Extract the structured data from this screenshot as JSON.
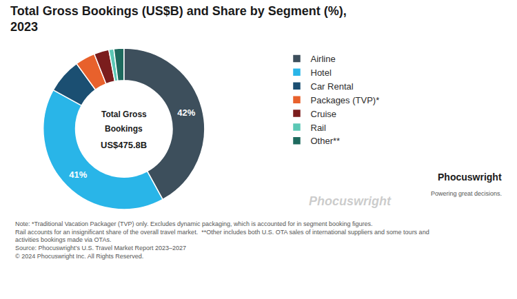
{
  "chart_data": {
    "type": "donut",
    "title": "Total Gross Bookings (US$B) and Share by Segment (%),\n2023",
    "categories": [
      "Airline",
      "Hotel",
      "Car Rental",
      "Packages (TVP)*",
      "Cruise",
      "Rail",
      "Other**"
    ],
    "values": [
      42,
      41,
      7,
      4,
      3,
      1,
      2
    ],
    "value_labels": [
      "42%",
      "41%",
      null,
      null,
      null,
      null,
      null
    ],
    "colors": [
      "#3d4f5c",
      "#29b5e8",
      "#1b4f72",
      "#e8612c",
      "#7b1d1d",
      "#5bc8b5",
      "#1e6a5e"
    ],
    "legend": "right",
    "annotations": [
      "Total Gross",
      "Bookings",
      "US$475.8B",
      "Phocuswright",
      "Note: *Traditional Vacation Packager (TVP) only. Excludes dynamic packaging, which is accounted for in segment booking figures.\nRail accounts for an insignificant share of the overall travel market.  **Other includes both U.S. OTA sales of international suppliers and some tours and\nactivities bookings made via OTAs.\nSource: Phocuswright’s U.S. Travel Market Report 2023–2027\n© 2024 Phocuswright Inc. All Rights Reserved.",
      "Phocuswright",
      "Powering great decisions."
    ]
  }
}
